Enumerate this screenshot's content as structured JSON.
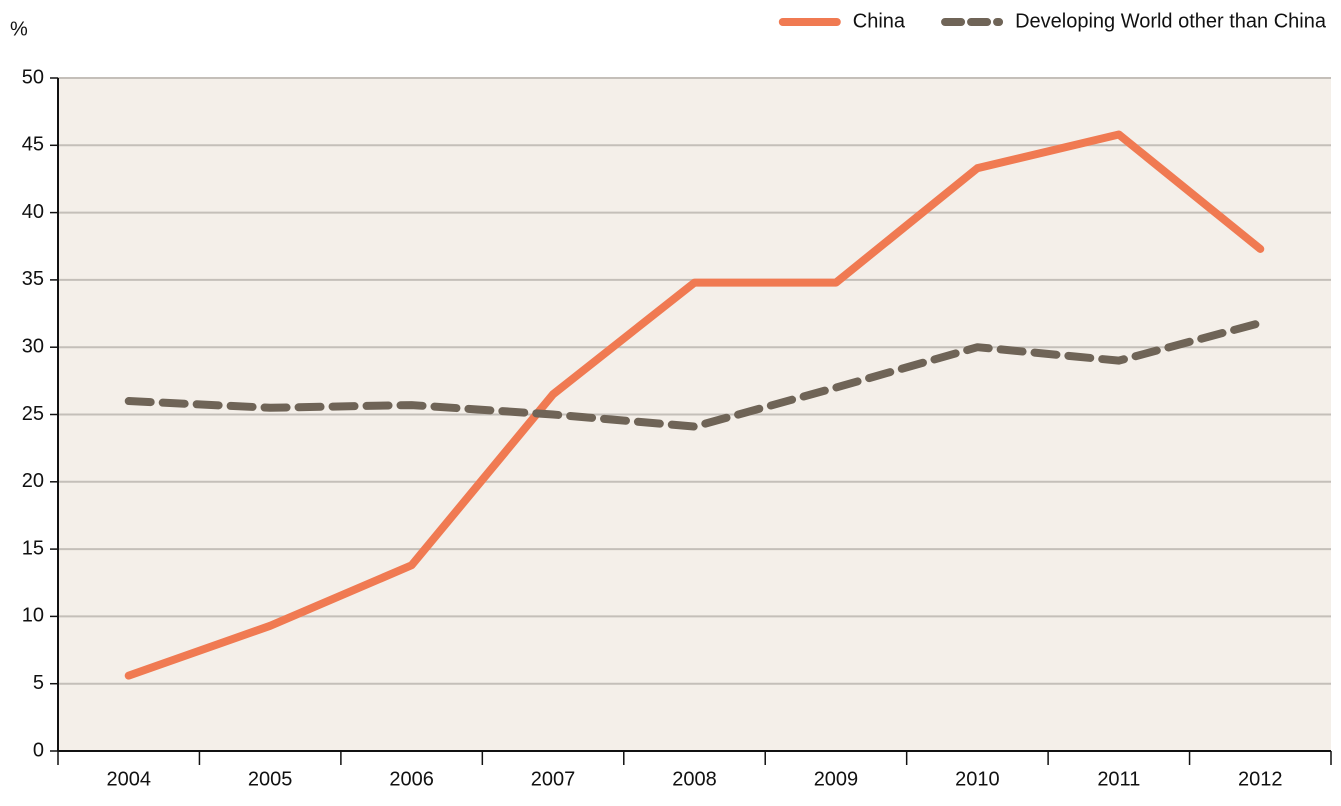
{
  "chart_data": {
    "type": "line",
    "y_label": "%",
    "categories": [
      "2004",
      "2005",
      "2006",
      "2007",
      "2008",
      "2009",
      "2010",
      "2011",
      "2012"
    ],
    "series": [
      {
        "name": "China",
        "color": "#f07a52",
        "dashed": false,
        "values": [
          5.6,
          9.3,
          13.8,
          26.5,
          34.8,
          34.8,
          43.3,
          45.8,
          37.3
        ]
      },
      {
        "name": "Developing World other than China",
        "color": "#6f6457",
        "dashed": true,
        "values": [
          26.0,
          25.5,
          25.7,
          25.0,
          24.1,
          27.0,
          30.0,
          29.0,
          31.8
        ]
      }
    ],
    "ylim": [
      0,
      50
    ],
    "yticks": [
      0,
      5,
      10,
      15,
      20,
      25,
      30,
      35,
      40,
      45,
      50
    ],
    "grid": true,
    "legend": "top-right"
  }
}
